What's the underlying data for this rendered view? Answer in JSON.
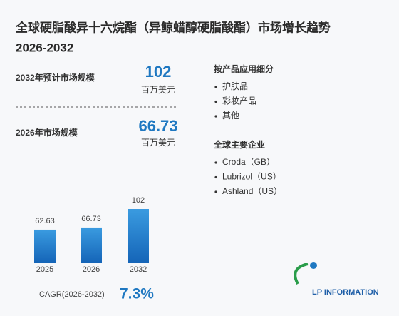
{
  "title": [
    "全球硬脂酸异十六烷酯（异鲸蜡醇硬脂酸酯）市场增长趋势",
    "2026-2032"
  ],
  "stats": [
    {
      "label": "2032年预计市场规模",
      "value": "102",
      "unit": "百万美元"
    },
    {
      "label": "2026年市场规模",
      "value": "66.73",
      "unit": "百万美元"
    }
  ],
  "segments": {
    "heading": "按产品应用细分",
    "items": [
      "护肤品",
      "彩妆产品",
      "其他"
    ]
  },
  "companies": {
    "heading": "全球主要企业",
    "items": [
      "Croda（GB）",
      "Lubrizol（US）",
      "Ashland（US）"
    ]
  },
  "cagr": {
    "label": "CAGR(2026-2032)",
    "value": "7.3%"
  },
  "logo": "LP INFORMATION",
  "chart_data": {
    "type": "bar",
    "categories": [
      "2025",
      "2026",
      "2032"
    ],
    "values": [
      62.63,
      66.73,
      102
    ],
    "color": "#1f78c1"
  }
}
